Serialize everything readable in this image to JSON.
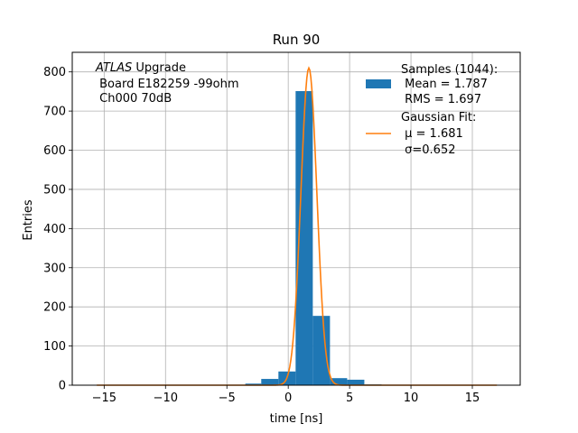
{
  "chart_data": {
    "type": "bar",
    "title": "Run 90",
    "xlabel": "time [ns]",
    "ylabel": "Entries",
    "xlim": [
      -17.6,
      18.9
    ],
    "ylim": [
      0,
      850
    ],
    "grid": true,
    "xticks": [
      -15,
      -10,
      -5,
      0,
      5,
      10,
      15
    ],
    "xtick_labels": [
      "−15",
      "−10",
      "−5",
      "0",
      "5",
      "10",
      "15"
    ],
    "yticks": [
      0,
      100,
      200,
      300,
      400,
      500,
      600,
      700,
      800
    ],
    "ytick_labels": [
      "0",
      "100",
      "200",
      "300",
      "400",
      "500",
      "600",
      "700",
      "800"
    ],
    "annotation": {
      "italic": "ATLAS",
      "line1_rest": " Upgrade",
      "line2": " Board E182259 -99ohm",
      "line3": " Ch000 70dB"
    },
    "legend_position": "top-right",
    "histogram": {
      "name": "Samples (1044):",
      "stats": [
        " Mean = 1.787",
        " RMS = 1.697"
      ],
      "color": "#1f77b4",
      "bins": [
        {
          "x0": -15.6,
          "x1": -14.3,
          "value": 1
        },
        {
          "x0": -3.5,
          "x1": -2.2,
          "value": 4
        },
        {
          "x0": -2.2,
          "x1": -0.8,
          "value": 16
        },
        {
          "x0": -0.8,
          "x1": 0.6,
          "value": 35
        },
        {
          "x0": 0.6,
          "x1": 2.0,
          "value": 751
        },
        {
          "x0": 2.0,
          "x1": 3.4,
          "value": 177
        },
        {
          "x0": 3.4,
          "x1": 4.8,
          "value": 18
        },
        {
          "x0": 4.8,
          "x1": 6.2,
          "value": 14
        },
        {
          "x0": 6.2,
          "x1": 7.6,
          "value": 2
        }
      ]
    },
    "fit": {
      "name": "Gaussian Fit:",
      "params": [
        " μ = 1.681",
        " σ=0.652"
      ],
      "color": "#ff7f0e",
      "mu": 1.681,
      "sigma": 0.652,
      "amplitude": 810,
      "x_range": [
        -15.6,
        17.0
      ]
    }
  }
}
